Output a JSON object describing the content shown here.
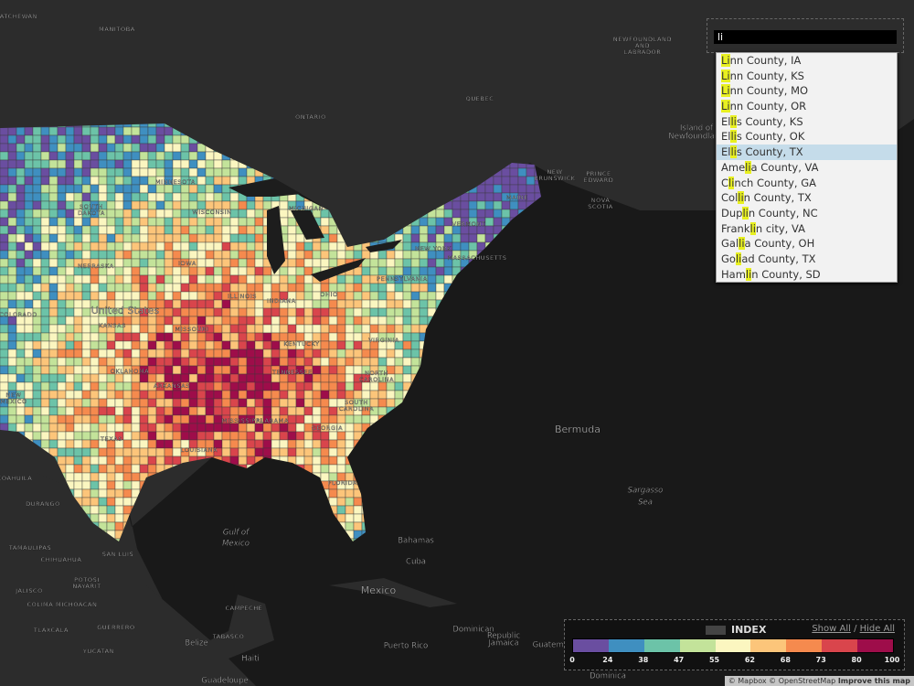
{
  "map_labels": [
    "KATCHEWAN",
    "MANITOBA",
    "NEWFOUNDLAND",
    "AND",
    "LABRADOR",
    "ONTARIO",
    "QUÉBEC",
    "Island of",
    "Newfoundland",
    "NEW",
    "BRUNSWICK",
    "PRINCE",
    "EDWARD",
    "NOVA",
    "SCOTIA",
    "MAINE",
    "MINNESOTA",
    "SOUTH",
    "DAKOTA",
    "WISCONSIN",
    "MICHIGAN",
    "IOWA",
    "NEBRASKA",
    "NEW YORK",
    "VERMONT",
    "MASSACHUSETTS",
    "PENNSYLVANIA",
    "COLORADO",
    "KANSAS",
    "United States",
    "ILLINOIS",
    "INDIANA",
    "OHIO",
    "MISSOURI",
    "VIRGINIA",
    "KENTUCKY",
    "OKLAHOMA",
    "TENNESSEE",
    "NORTH",
    "CAROLINA",
    "ARKANSAS",
    "NEW",
    "MEXICO",
    "MISSISSIPPI",
    "ALABAMA",
    "GEORGIA",
    "SOUTH",
    "CAROLINA",
    "TEXAS",
    "LOUISIANA",
    "FLORIDA",
    "Bermuda",
    "Sargasso",
    "Sea",
    "Gulf of",
    "Mexico",
    "Bahamas",
    "Cuba",
    "Mexico",
    "CHIHUAHUA",
    "COAHUILA",
    "DURANGO",
    "TAMAULIPAS",
    "SAN LUIS",
    "POTOSÍ",
    "NAYARIT",
    "JALISCO",
    "COLIMA MICHOACÁN",
    "TLAXCALA",
    "GUERRERO",
    "YUCATÁN",
    "CAMPECHE",
    "TABASCO",
    "Belize",
    "Haiti",
    "Dominican",
    "Republic",
    "Jamaica",
    "Puerto Rico",
    "Guatemala",
    "Guadeloupe",
    "Dominica"
  ],
  "search": {
    "query": "li",
    "selected": 6,
    "suggestions": [
      "Linn County, IA",
      "Linn County, KS",
      "Linn County, MO",
      "Linn County, OR",
      "Ellis County, KS",
      "Ellis County, OK",
      "Ellis County, TX",
      "Amelia County, VA",
      "Clinch County, GA",
      "Collin County, TX",
      "Duplin County, NC",
      "Franklin city, VA",
      "Gallia County, OH",
      "Goliad County, TX",
      "Hamlin County, SD"
    ]
  },
  "legend": {
    "title": "INDEX",
    "show_all": "Show All",
    "separator": "/",
    "hide_all": "Hide All",
    "ticks": [
      0,
      24,
      38,
      47,
      55,
      62,
      68,
      73,
      80,
      100
    ],
    "colors": [
      "#6a4ea0",
      "#3f8fc0",
      "#6cc3a8",
      "#c3e39a",
      "#fbf6c0",
      "#fcc57a",
      "#f58a4e",
      "#d9454c",
      "#9e0d4a"
    ]
  },
  "attribution": {
    "mapbox": "© Mapbox",
    "osm": "© OpenStreetMap",
    "improve": "Improve this map"
  }
}
